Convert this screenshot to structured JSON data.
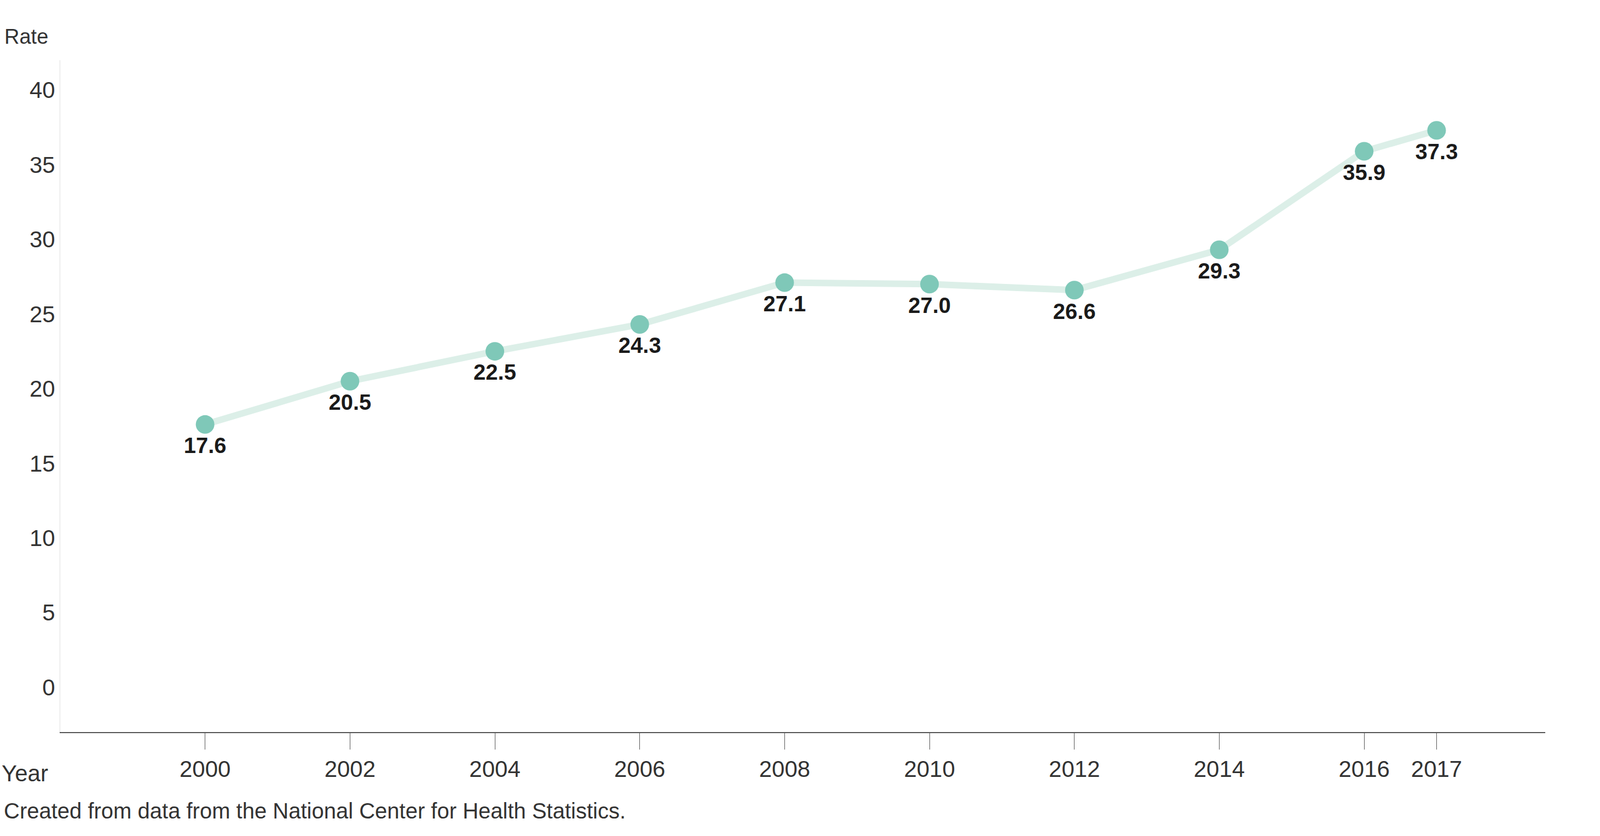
{
  "chart_data": {
    "type": "line",
    "x_label": "Year",
    "y_label": "Rate",
    "note": "Created from data from the National Center for Health Statistics.",
    "x": [
      2000,
      2002,
      2004,
      2006,
      2008,
      2010,
      2012,
      2014,
      2016,
      2017
    ],
    "values": [
      17.6,
      20.5,
      22.5,
      24.3,
      27.1,
      27.0,
      26.6,
      29.3,
      35.9,
      37.3
    ],
    "value_labels": [
      "17.6",
      "20.5",
      "22.5",
      "24.3",
      "27.1",
      "27.0",
      "26.6",
      "29.3",
      "35.9",
      "37.3"
    ],
    "color": "#7fc8b8",
    "marker": "circle",
    "data_labels": true,
    "grid": false,
    "xlim": [
      1998,
      2018.5
    ],
    "xticks": [
      2000,
      2002,
      2004,
      2006,
      2008,
      2010,
      2012,
      2014,
      2016,
      2017
    ],
    "ylim": [
      -3,
      42
    ],
    "yticks": [
      0,
      5,
      10,
      15,
      20,
      25,
      30,
      35,
      40
    ]
  }
}
